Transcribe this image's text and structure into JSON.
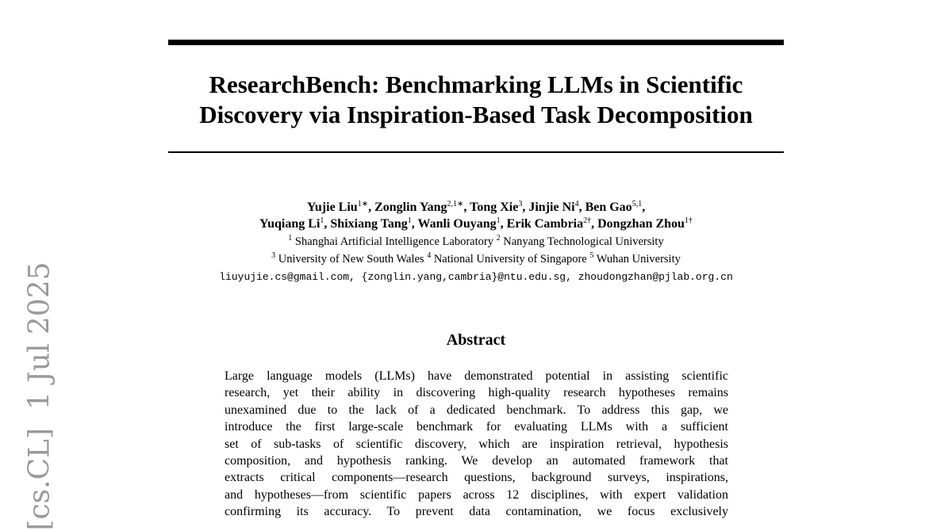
{
  "header": {
    "title_lines": [
      "ResearchBench: Benchmarking LLMs in Scientific",
      "Discovery via Inspiration-Based Task Decomposition"
    ],
    "author_lines": [
      [
        {
          "name": "Yujie Liu",
          "mark": "1∗",
          "sep": ","
        },
        {
          "name": "Zonglin Yang",
          "mark": "2,1∗",
          "sep": ","
        },
        {
          "name": "Tong Xie",
          "mark": "3",
          "sep": ","
        },
        {
          "name": "Jinjie Ni",
          "mark": "4",
          "sep": ","
        },
        {
          "name": "Ben Gao",
          "mark": "5,1",
          "sep": ","
        }
      ],
      [
        {
          "name": "Yuqiang Li",
          "mark": "1",
          "sep": ","
        },
        {
          "name": "Shixiang Tang",
          "mark": "1",
          "sep": ","
        },
        {
          "name": "Wanli Ouyang",
          "mark": "1",
          "sep": ","
        },
        {
          "name": "Erik Cambria",
          "mark": "2†",
          "sep": ","
        },
        {
          "name": "Dongzhan Zhou",
          "mark": "1†"
        }
      ]
    ],
    "affiliation_lines": [
      [
        {
          "num": "1",
          "name": "Shanghai Artificial Intelligence Laboratory"
        },
        {
          "num": "2",
          "name": "Nanyang Technological University"
        }
      ],
      [
        {
          "num": "3",
          "name": "University of New South Wales"
        },
        {
          "num": "4",
          "name": "National University of Singapore"
        },
        {
          "num": "5",
          "name": "Wuhan University"
        }
      ]
    ],
    "emails": "liuyujie.cs@gmail.com, {zonglin.yang,cambria}@ntu.edu.sg, zhoudongzhan@pjlab.org.cn"
  },
  "abstract": {
    "heading": "Abstract",
    "lines": [
      "Large language models (LLMs) have demonstrated potential in assisting scientific",
      "research, yet their ability in discovering high-quality research hypotheses remains",
      "unexamined due to the lack of a dedicated benchmark. To address this gap, we",
      "introduce the first large-scale benchmark for evaluating LLMs with a sufficient",
      "set of sub-tasks of scientific discovery, which are inspiration retrieval, hypothesis",
      "composition, and hypothesis ranking. We develop an automated framework that",
      "extracts critical components—research questions, background surveys, inspirations,",
      "and hypotheses—from scientific papers across 12 disciplines, with expert validation",
      "confirming its accuracy. To prevent data contamination, we focus exclusively"
    ]
  },
  "sidebar": {
    "watermark": "[cs.CL]  1 Jul 2025"
  }
}
